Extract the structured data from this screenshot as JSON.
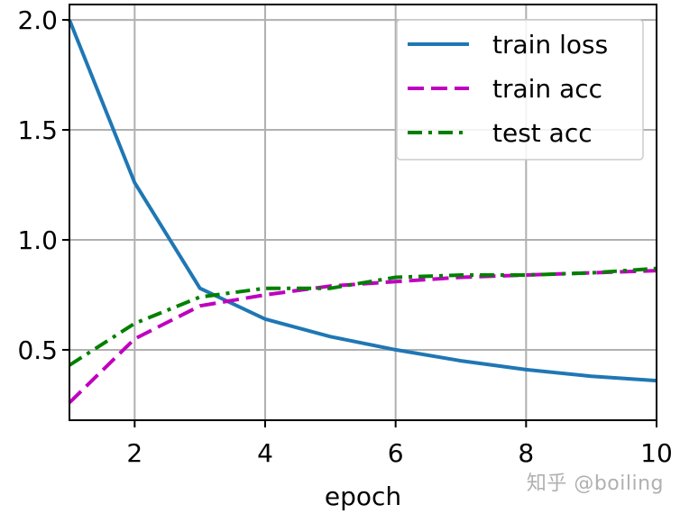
{
  "chart_data": {
    "type": "line",
    "xlabel": "epoch",
    "ylabel": "",
    "xlim": [
      1,
      10
    ],
    "ylim": [
      0.18,
      2.07
    ],
    "xticks": [
      2,
      4,
      6,
      8,
      10
    ],
    "yticks": [
      0.5,
      1.0,
      1.5,
      2.0
    ],
    "xtick_labels": [
      "2",
      "4",
      "6",
      "8",
      "10"
    ],
    "ytick_labels": [
      "0.5",
      "1.0",
      "1.5",
      "2.0"
    ],
    "grid": true,
    "legend_position": "top-right",
    "x": [
      1,
      2,
      3,
      4,
      5,
      6,
      7,
      8,
      9,
      10
    ],
    "series": [
      {
        "name": "train loss",
        "color": "#1f77b4",
        "dash": "solid",
        "values": [
          2.0,
          1.26,
          0.78,
          0.64,
          0.56,
          0.5,
          0.45,
          0.41,
          0.38,
          0.36
        ]
      },
      {
        "name": "train acc",
        "color": "#bf00bf",
        "dash": "dashed",
        "values": [
          0.26,
          0.55,
          0.7,
          0.75,
          0.79,
          0.81,
          0.83,
          0.84,
          0.85,
          0.86
        ]
      },
      {
        "name": "test acc",
        "color": "#008000",
        "dash": "dashdot",
        "values": [
          0.43,
          0.62,
          0.74,
          0.78,
          0.78,
          0.83,
          0.84,
          0.84,
          0.85,
          0.87
        ]
      }
    ]
  },
  "watermark": "知乎 @boiling"
}
